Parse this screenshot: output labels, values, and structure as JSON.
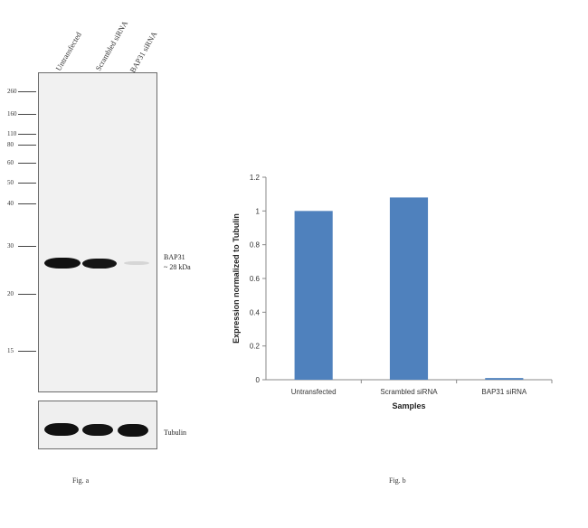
{
  "figure_a": {
    "lanes": [
      "Untransfected",
      "Scrambled siRNA",
      "BAP31 siRNA"
    ],
    "markers": [
      "260",
      "160",
      "110",
      "80",
      "60",
      "50",
      "40",
      "30",
      "20",
      "15"
    ],
    "band_label": "BAP31",
    "band_size": "~ 28 kDa",
    "loading_control": "Tubulin",
    "caption": "Fig. a"
  },
  "figure_b": {
    "caption": "Fig. b"
  },
  "chart_data": {
    "type": "bar",
    "categories": [
      "Untransfected",
      "Scrambled siRNA",
      "BAP31 siRNA"
    ],
    "values": [
      1.0,
      1.08,
      0.01
    ],
    "title": "",
    "xlabel": "Samples",
    "ylabel": "Expression normalized to Tubulin",
    "ylim": [
      0,
      1.2
    ],
    "yticks": [
      "0",
      "0.2",
      "0.4",
      "0.6",
      "0.8",
      "1",
      "1.2"
    ],
    "bar_color": "#4f81bd",
    "grid": false,
    "legend": "none"
  }
}
